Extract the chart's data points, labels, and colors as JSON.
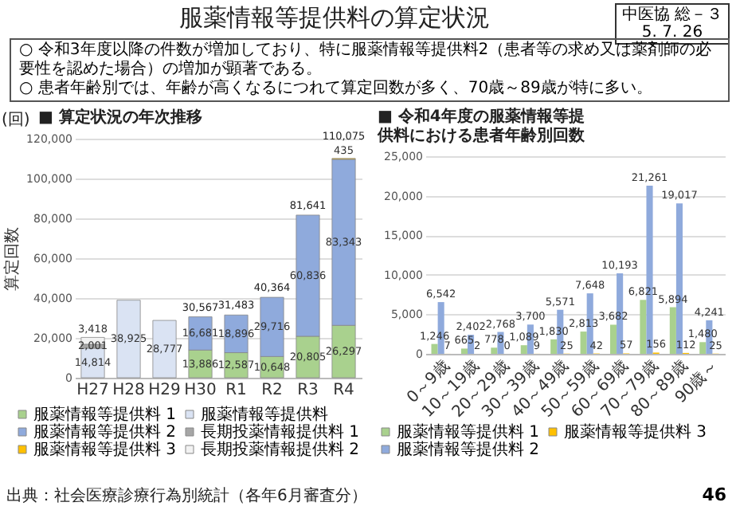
{
  "chart_data": [
    {
      "type": "other",
      "title": "服薬情報等提供料の算定状況",
      "subtitle": "中医協 総－３ 5. 7. 26",
      "annotations": [
        "○ 令和3年度以降の件数が増加しており、特に服薬情報等提供料2（患者等の求め又は薬剤師の必要性を認めた場合）の増加が顕著である。",
        "○ 患者年齢別では、年齢が高くなるにつれて算定回数が多く、70歳～89歳が特に多い。",
        "46"
      ]
    },
    {
      "type": "bar",
      "title": "■ 算定状況の年次推移",
      "ylabel": "算定回数",
      "stacked": true,
      "categories": [
        "H27",
        "H28",
        "H29",
        "H30",
        "R1",
        "R2",
        "R3",
        "R4"
      ],
      "series": [
        {
          "name": "服薬情報等提供料 1",
          "color": "#a9d18e",
          "values": [
            null,
            null,
            null,
            13886,
            12587,
            10648,
            20805,
            26297
          ],
          "value_labels": [
            null,
            null,
            null,
            "13,886",
            "12,587",
            "10,648",
            "20,805",
            "26,297"
          ]
        },
        {
          "name": "服薬情報等提供料 2",
          "color": "#8faadc",
          "values": [
            null,
            null,
            null,
            16681,
            18896,
            29716,
            60836,
            83343
          ],
          "value_labels": [
            null,
            null,
            null,
            "16,681",
            "18,896",
            "29,716",
            "60,836",
            "83,343"
          ]
        },
        {
          "name": "服薬情報等提供料 3",
          "color": "#ffc000",
          "values": [
            null,
            null,
            null,
            null,
            null,
            null,
            null,
            435
          ],
          "value_labels": [
            null,
            null,
            null,
            null,
            null,
            null,
            null,
            "435"
          ]
        },
        {
          "name": "服薬情報等提供料",
          "color": "#dae3f3",
          "values": [
            14814,
            38925,
            28777,
            null,
            null,
            null,
            null,
            null
          ],
          "value_labels": [
            "14,814",
            "38,925",
            "28,777",
            null,
            null,
            null,
            null,
            null
          ]
        },
        {
          "name": "長期投薬情報提供料 1",
          "color": "#a6a6a6",
          "values": [
            2001,
            null,
            null,
            null,
            null,
            null,
            null,
            null
          ],
          "value_labels": [
            "2,001",
            null,
            null,
            null,
            null,
            null,
            null,
            null
          ]
        },
        {
          "name": "長期投薬情報提供料 2",
          "color": "#f2f2f2",
          "values": [
            3418,
            null,
            null,
            null,
            null,
            null,
            null,
            null
          ],
          "value_labels": [
            "3,418",
            null,
            null,
            null,
            null,
            null,
            null,
            null
          ]
        }
      ],
      "totals": [
        null,
        null,
        null,
        "30,567",
        "31,483",
        "40,364",
        "81,641",
        "110,075"
      ],
      "ylim": [
        0,
        120000
      ],
      "yticks": [
        0,
        {
          "value": 20000,
          "label": "20,000"
        },
        {
          "value": 40000,
          "label": "40,000"
        },
        {
          "value": 60000,
          "label": "60,000"
        },
        {
          "value": 80000,
          "label": "80,000"
        },
        {
          "value": 100000,
          "label": "100,000"
        },
        {
          "value": 120000,
          "label": "120,000"
        }
      ],
      "grid": "y",
      "legend": "bottom",
      "annotations": [
        "(回)",
        "出典：社会医療診療行為別統計（各年6月審査分）"
      ]
    },
    {
      "type": "bar",
      "title": "■ 令和4年度の服薬情報等提供料における患者年齢別回数",
      "categories": [
        "0～9歳",
        "10～19歳",
        "20～29歳",
        "30～39歳",
        "40～49歳",
        "50～59歳",
        "60～69歳",
        "70～79歳",
        "80～89歳",
        "90歳～"
      ],
      "series": [
        {
          "name": "服薬情報等提供料 1",
          "color": "#a9d18e",
          "values": [
            1246,
            665,
            778,
            1089,
            1830,
            2813,
            3682,
            6821,
            5894,
            1480
          ],
          "value_labels": [
            "1,246",
            "665",
            "778",
            "1,089",
            "1,830",
            "2,813",
            "3,682",
            "6,821",
            "5,894",
            "1,480"
          ]
        },
        {
          "name": "服薬情報等提供料 2",
          "color": "#8faadc",
          "values": [
            6542,
            2402,
            2768,
            3700,
            5571,
            7648,
            10193,
            21261,
            19017,
            4241
          ],
          "value_labels": [
            "6,542",
            "2,402",
            "2,768",
            "3,700",
            "5,571",
            "7,648",
            "10,193",
            "21,261",
            "19,017",
            "4,241"
          ]
        },
        {
          "name": "服薬情報等提供料 3",
          "color": "#ffc000",
          "values": [
            7,
            2,
            0,
            9,
            25,
            42,
            57,
            156,
            112,
            25
          ],
          "value_labels": [
            "7",
            "2",
            "0",
            "9",
            "25",
            "42",
            "57",
            "156",
            "112",
            "25"
          ]
        }
      ],
      "ylim": [
        0,
        25000
      ],
      "yticks": [
        0,
        {
          "value": 5000,
          "label": "5,000"
        },
        {
          "value": 10000,
          "label": "10,000"
        },
        {
          "value": 15000,
          "label": "15,000"
        },
        {
          "value": 20000,
          "label": "20,000"
        },
        {
          "value": 25000,
          "label": "25,000"
        }
      ],
      "grid": "y",
      "legend": "bottom"
    }
  ]
}
